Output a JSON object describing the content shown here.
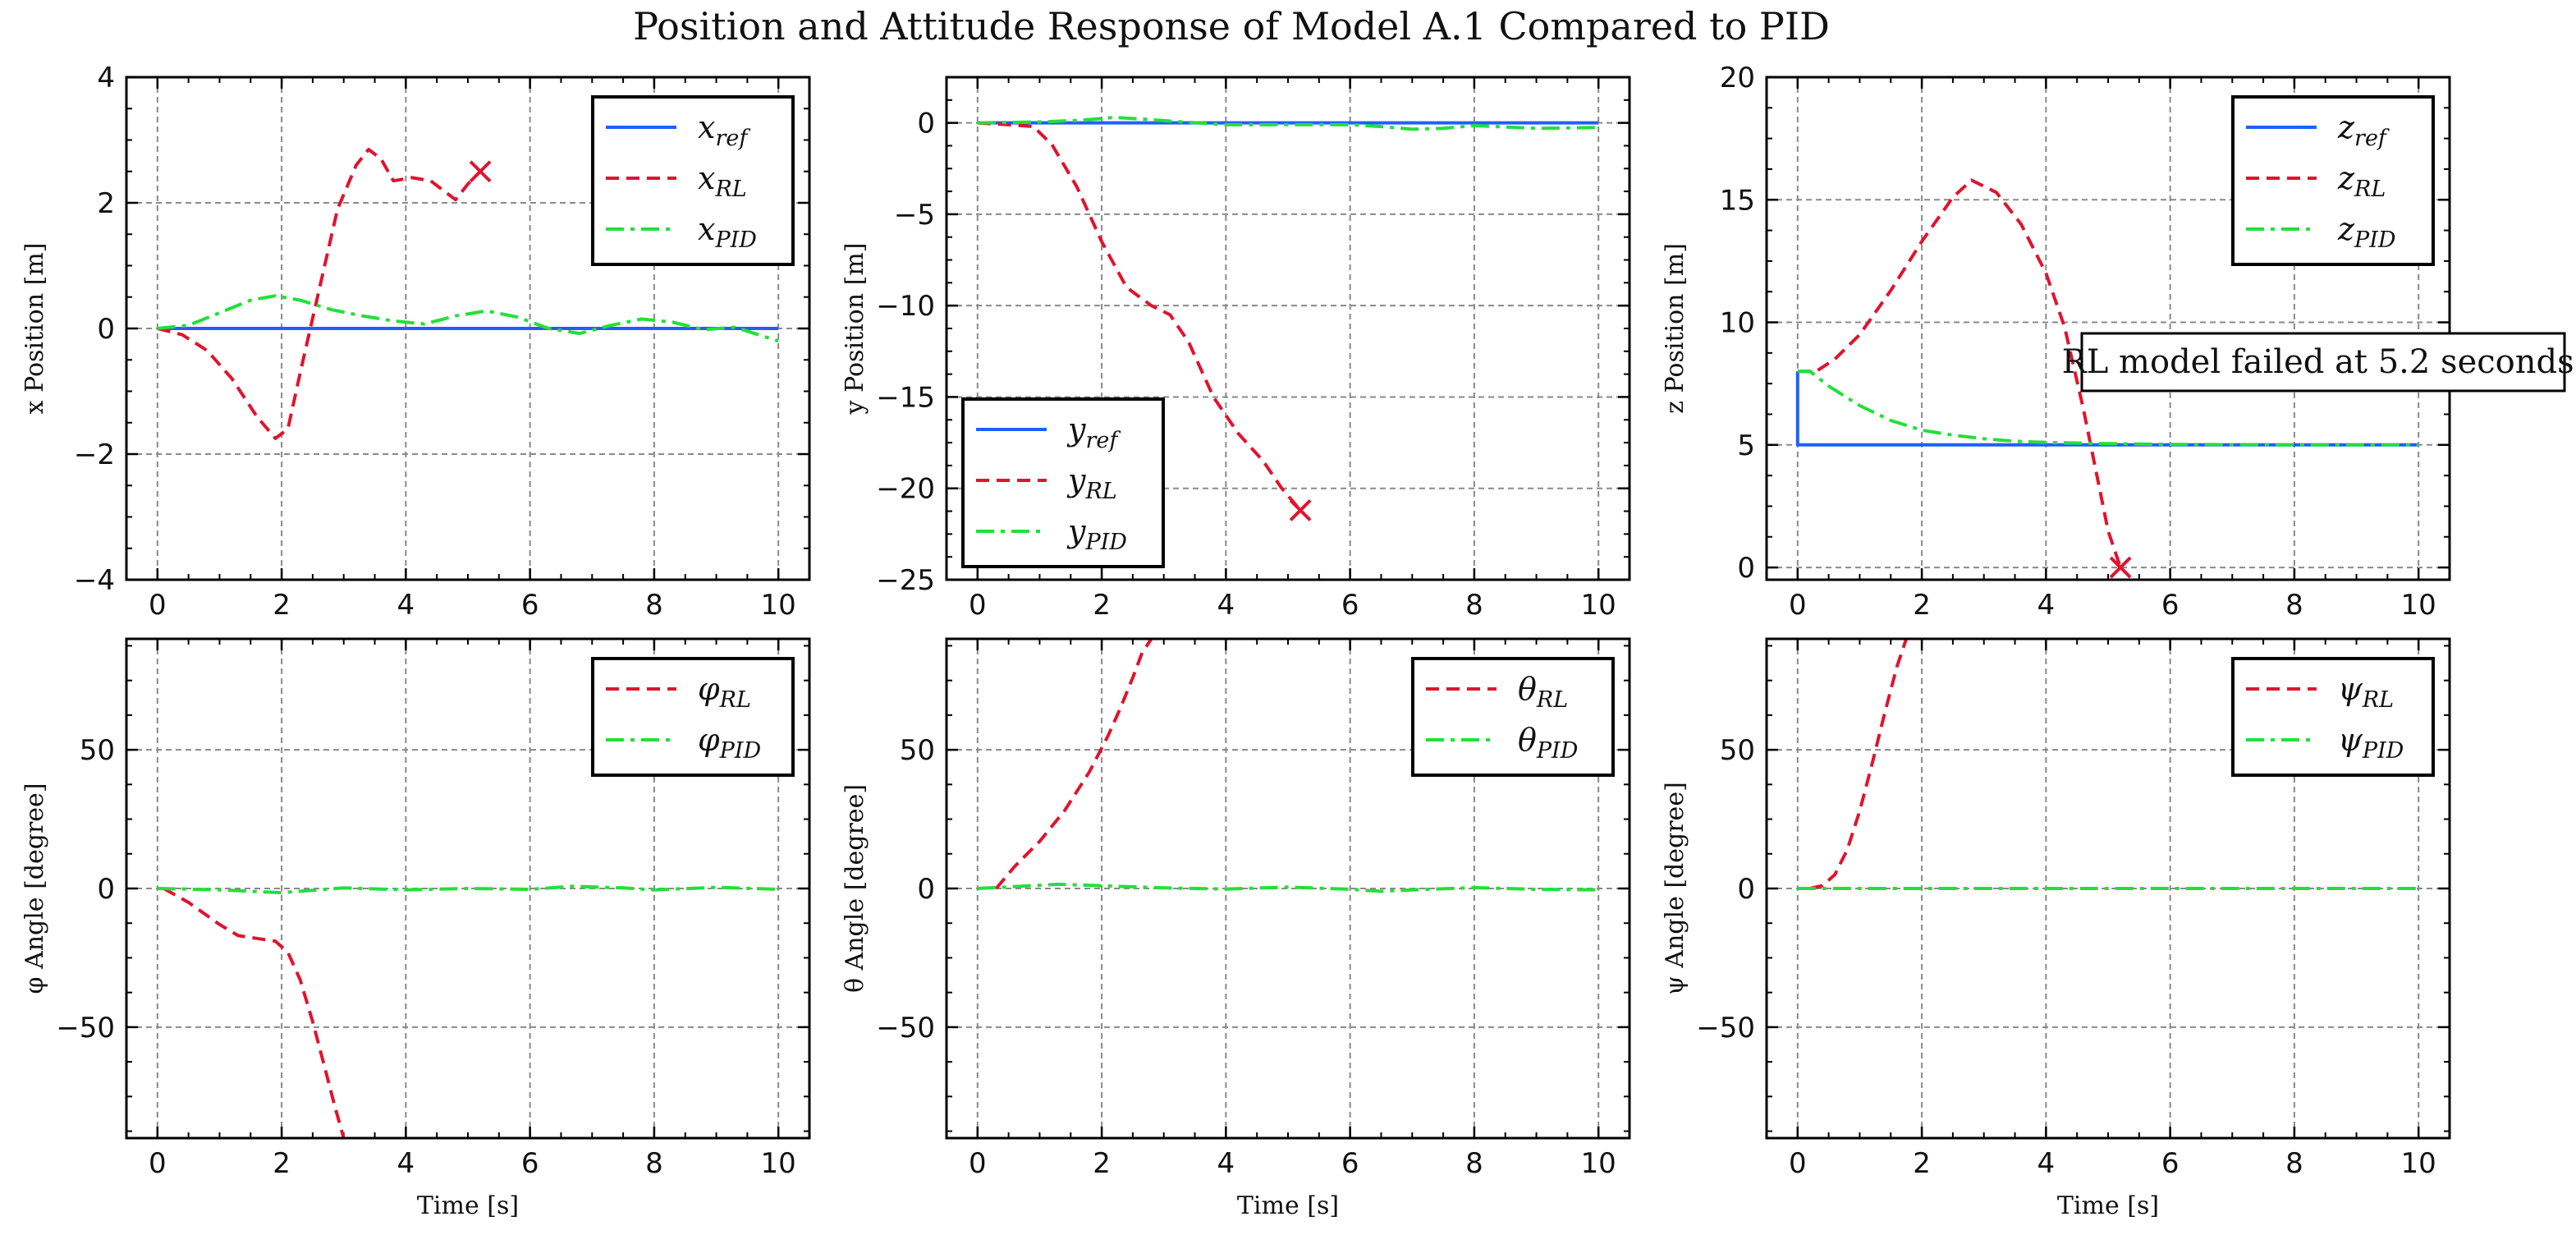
{
  "title": "Position and Attitude Response of Model A.1 Compared to PID",
  "colors": {
    "ref": "#1f5fff",
    "rl": "#e0142e",
    "pid": "#22e03a"
  },
  "chart_data": [
    {
      "type": "line",
      "ylabel": "x Position [m]",
      "xlabel": "",
      "xlim": [
        -0.5,
        10.5
      ],
      "ylim": [
        -4,
        4
      ],
      "xticks": [
        0,
        2,
        4,
        6,
        8,
        10
      ],
      "yticks": [
        -4,
        -2,
        0,
        2,
        4
      ],
      "ytick_labels": [
        "−4",
        "−2",
        "0",
        "2",
        "4"
      ],
      "legend": "top-right",
      "series": [
        {
          "name": "x_ref",
          "label_main": "x",
          "label_sub": "ref",
          "style": "ref",
          "x": [
            0,
            10
          ],
          "y": [
            0,
            0
          ]
        },
        {
          "name": "x_RL",
          "label_main": "x",
          "label_sub": "RL",
          "style": "rl",
          "x": [
            0,
            0.4,
            0.8,
            1.2,
            1.6,
            1.9,
            2.1,
            2.3,
            2.6,
            2.9,
            3.2,
            3.4,
            3.6,
            3.8,
            4.1,
            4.4,
            4.8,
            5.0,
            5.2
          ],
          "y": [
            0,
            -0.1,
            -0.35,
            -0.8,
            -1.4,
            -1.75,
            -1.6,
            -0.7,
            0.6,
            1.9,
            2.6,
            2.85,
            2.7,
            2.35,
            2.4,
            2.35,
            2.05,
            2.3,
            2.5
          ]
        },
        {
          "name": "x_PID",
          "label_main": "x",
          "label_sub": "PID",
          "style": "pid",
          "x": [
            0,
            0.5,
            1.0,
            1.5,
            1.9,
            2.3,
            2.8,
            3.3,
            3.8,
            4.3,
            4.8,
            5.3,
            5.8,
            6.3,
            6.8,
            7.3,
            7.8,
            8.3,
            8.8,
            9.3,
            10
          ],
          "y": [
            0,
            0.05,
            0.25,
            0.45,
            0.52,
            0.45,
            0.3,
            0.2,
            0.12,
            0.07,
            0.2,
            0.28,
            0.18,
            0.0,
            -0.08,
            0.05,
            0.15,
            0.1,
            -0.02,
            0.02,
            -0.2
          ]
        }
      ],
      "failure_marker": {
        "x": 5.2,
        "y": 2.5
      }
    },
    {
      "type": "line",
      "ylabel": "y Position [m]",
      "xlabel": "",
      "xlim": [
        -0.5,
        10.5
      ],
      "ylim": [
        -25,
        2.5
      ],
      "xticks": [
        0,
        2,
        4,
        6,
        8,
        10
      ],
      "yticks": [
        -25,
        -20,
        -15,
        -10,
        -5,
        0
      ],
      "ytick_labels": [
        "−25",
        "−20",
        "−15",
        "−10",
        "−5",
        "0"
      ],
      "legend": "bottom-left",
      "series": [
        {
          "name": "y_ref",
          "label_main": "y",
          "label_sub": "ref",
          "style": "ref",
          "x": [
            0,
            10
          ],
          "y": [
            0,
            0
          ]
        },
        {
          "name": "y_RL",
          "label_main": "y",
          "label_sub": "RL",
          "style": "rl",
          "x": [
            0,
            0.5,
            0.9,
            1.2,
            1.6,
            2.0,
            2.4,
            2.8,
            3.1,
            3.4,
            3.8,
            4.2,
            4.6,
            4.9,
            5.2
          ],
          "y": [
            0,
            -0.1,
            -0.2,
            -1.2,
            -3.5,
            -6.5,
            -9.0,
            -10.0,
            -10.5,
            -12.0,
            -15.0,
            -17.0,
            -18.5,
            -20.0,
            -21.2
          ]
        },
        {
          "name": "y_PID",
          "label_main": "y",
          "label_sub": "PID",
          "style": "pid",
          "x": [
            0,
            1,
            1.7,
            2.2,
            2.7,
            3.3,
            4,
            5,
            6,
            6.5,
            7,
            7.5,
            8,
            9,
            10
          ],
          "y": [
            0,
            0.05,
            0.15,
            0.3,
            0.2,
            0.05,
            -0.1,
            -0.1,
            -0.1,
            -0.2,
            -0.35,
            -0.3,
            -0.15,
            -0.3,
            -0.25
          ]
        }
      ],
      "failure_marker": {
        "x": 5.2,
        "y": -21.2
      }
    },
    {
      "type": "line",
      "ylabel": "z Position [m]",
      "xlabel": "",
      "xlim": [
        -0.5,
        10.5
      ],
      "ylim": [
        -0.5,
        20
      ],
      "xticks": [
        0,
        2,
        4,
        6,
        8,
        10
      ],
      "yticks": [
        0,
        5,
        10,
        15,
        20
      ],
      "ytick_labels": [
        "0",
        "5",
        "10",
        "15",
        "20"
      ],
      "legend": "top-right",
      "annotation": "RL model failed at 5.2 seconds.",
      "series": [
        {
          "name": "z_ref",
          "label_main": "z",
          "label_sub": "ref",
          "style": "ref",
          "x": [
            0,
            0,
            10
          ],
          "y": [
            8,
            5,
            5
          ]
        },
        {
          "name": "z_RL",
          "label_main": "z",
          "label_sub": "RL",
          "style": "rl",
          "x": [
            0,
            0.3,
            0.6,
            1.0,
            1.5,
            2.0,
            2.5,
            2.8,
            3.2,
            3.6,
            4.0,
            4.3,
            4.6,
            4.8,
            5.0,
            5.2
          ],
          "y": [
            8,
            8.0,
            8.5,
            9.5,
            11.3,
            13.3,
            15.1,
            15.8,
            15.3,
            14.0,
            12.0,
            9.8,
            6.5,
            4.0,
            1.5,
            0
          ]
        },
        {
          "name": "z_PID",
          "label_main": "z",
          "label_sub": "PID",
          "style": "pid",
          "x": [
            0,
            0.2,
            0.5,
            1.0,
            1.5,
            2.0,
            2.5,
            3.0,
            3.5,
            4.0,
            5.0,
            6.0,
            8.0,
            10.0
          ],
          "y": [
            8,
            8.0,
            7.4,
            6.6,
            6.0,
            5.6,
            5.4,
            5.25,
            5.15,
            5.1,
            5.05,
            5.02,
            5.0,
            5.0
          ]
        }
      ],
      "failure_marker": {
        "x": 5.2,
        "y": 0
      }
    },
    {
      "type": "line",
      "ylabel": "φ Angle [degree]",
      "xlabel": "Time [s]",
      "xlim": [
        -0.5,
        10.5
      ],
      "ylim": [
        -90,
        90
      ],
      "xticks": [
        0,
        2,
        4,
        6,
        8,
        10
      ],
      "yticks": [
        -50,
        0,
        50
      ],
      "ytick_labels": [
        "−50",
        "0",
        "50"
      ],
      "legend": "top-right",
      "series": [
        {
          "name": "φ_RL",
          "label_main": "φ",
          "label_sub": "RL",
          "style": "rl",
          "x": [
            0.1,
            0.5,
            1.0,
            1.3,
            1.6,
            1.9,
            2.1,
            2.3,
            2.5,
            2.7,
            2.85,
            3.0
          ],
          "y": [
            0,
            -5,
            -13,
            -17,
            -18,
            -19,
            -23,
            -33,
            -48,
            -65,
            -78,
            -90
          ]
        },
        {
          "name": "φ_PID",
          "label_main": "φ",
          "label_sub": "PID",
          "style": "pid",
          "x": [
            0,
            1,
            2,
            3,
            4,
            5,
            6,
            6.7,
            7.5,
            8,
            9,
            10
          ],
          "y": [
            0,
            -0.5,
            -1.5,
            0.2,
            -0.5,
            0,
            -0.3,
            0.8,
            0.2,
            -0.5,
            0.4,
            -0.3
          ]
        }
      ]
    },
    {
      "type": "line",
      "ylabel": "θ Angle [degree]",
      "xlabel": "Time [s]",
      "xlim": [
        -0.5,
        10.5
      ],
      "ylim": [
        -90,
        90
      ],
      "xticks": [
        0,
        2,
        4,
        6,
        8,
        10
      ],
      "yticks": [
        -50,
        0,
        50
      ],
      "ytick_labels": [
        "−50",
        "0",
        "50"
      ],
      "legend": "top-right",
      "series": [
        {
          "name": "θ_RL",
          "label_main": "θ",
          "label_sub": "RL",
          "style": "rl",
          "x": [
            0.3,
            0.6,
            1.0,
            1.4,
            1.8,
            2.1,
            2.3,
            2.5,
            2.65,
            2.8
          ],
          "y": [
            0,
            8,
            17,
            28,
            42,
            55,
            65,
            76,
            85,
            90
          ]
        },
        {
          "name": "θ_PID",
          "label_main": "θ",
          "label_sub": "PID",
          "style": "pid",
          "x": [
            0,
            0.7,
            1.3,
            2,
            3,
            4,
            5,
            6,
            6.5,
            7,
            8,
            9,
            10
          ],
          "y": [
            0,
            0.8,
            1.5,
            1.0,
            0.2,
            -0.2,
            0.5,
            -0.3,
            -1.0,
            -0.5,
            0.3,
            -0.3,
            -0.5
          ]
        }
      ]
    },
    {
      "type": "line",
      "ylabel": "ψ Angle [degree]",
      "xlabel": "Time [s]",
      "xlim": [
        -0.5,
        10.5
      ],
      "ylim": [
        -90,
        90
      ],
      "xticks": [
        0,
        2,
        4,
        6,
        8,
        10
      ],
      "yticks": [
        -50,
        0,
        50
      ],
      "ytick_labels": [
        "−50",
        "0",
        "50"
      ],
      "legend": "top-right",
      "series": [
        {
          "name": "ψ_RL",
          "label_main": "ψ",
          "label_sub": "RL",
          "style": "rl",
          "x": [
            0.2,
            0.4,
            0.6,
            0.8,
            1.0,
            1.2,
            1.4,
            1.6,
            1.75
          ],
          "y": [
            0,
            1,
            5,
            14,
            28,
            45,
            63,
            80,
            90
          ]
        },
        {
          "name": "ψ_PID",
          "label_main": "ψ",
          "label_sub": "PID",
          "style": "pid",
          "x": [
            0,
            10
          ],
          "y": [
            0,
            0
          ]
        }
      ]
    }
  ]
}
